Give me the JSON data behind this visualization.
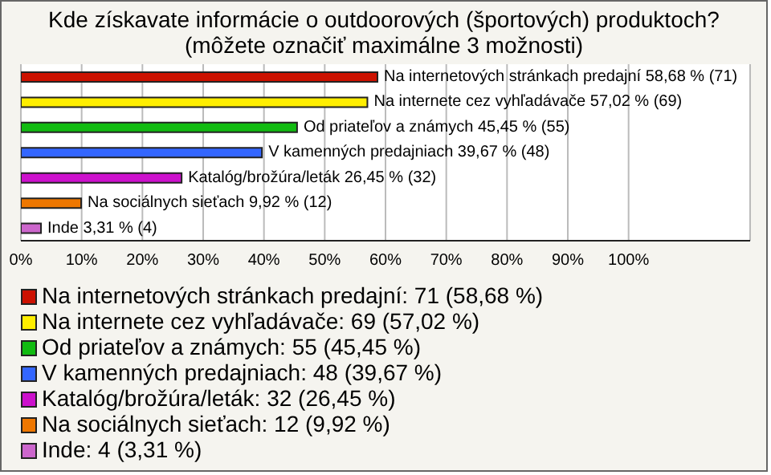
{
  "chart_data": {
    "type": "bar",
    "orientation": "horizontal",
    "stacked": true,
    "title": "Kde získavate informácie o outdoorových (športových) produktoch?",
    "subtitle": "(môžete označiť maximálne 3 možnosti)",
    "categories": [
      null,
      null,
      null,
      null,
      null,
      null,
      null
    ],
    "series": [
      {
        "name": "Na internetových stránkach predajní: 71 (58,68 %)",
        "color": "#cc1100",
        "values": [
          58.68,
          null,
          null,
          null,
          null,
          null,
          null
        ],
        "value_labels": [
          "Na internetových stránkach predajní 58,68 % (71)",
          null,
          null,
          null,
          null,
          null,
          null
        ]
      },
      {
        "name": "Na internete cez vyhľadávače: 69 (57,02 %)",
        "color": "#ffee00",
        "values": [
          null,
          57.02,
          null,
          null,
          null,
          null,
          null
        ],
        "value_labels": [
          null,
          "Na internete cez vyhľadávače 57,02 % (69)",
          null,
          null,
          null,
          null,
          null
        ]
      },
      {
        "name": "Od priateľov a známych: 55 (45,45 %)",
        "color": "#11bb11",
        "values": [
          null,
          null,
          45.45,
          null,
          null,
          null,
          null
        ],
        "value_labels": [
          null,
          null,
          "Od priateľov a známych 45,45 % (55)",
          null,
          null,
          null,
          null
        ]
      },
      {
        "name": "V kamenných predajniach: 48 (39,67 %)",
        "color": "#3366ff",
        "values": [
          null,
          null,
          null,
          39.67,
          null,
          null,
          null
        ],
        "value_labels": [
          null,
          null,
          null,
          "V kamenných predajniach 39,67 % (48)",
          null,
          null,
          null
        ]
      },
      {
        "name": "Katalóg/brožúra/leták: 32 (26,45 %)",
        "color": "#cc11cc",
        "values": [
          null,
          null,
          null,
          null,
          26.45,
          null,
          null
        ],
        "value_labels": [
          null,
          null,
          null,
          null,
          "Katalóg/brožúra/leták 26,45 % (32)",
          null,
          null
        ]
      },
      {
        "name": "Na sociálnych sieťach: 12 (9,92 %)",
        "color": "#ee7700",
        "values": [
          null,
          null,
          null,
          null,
          null,
          9.92,
          null
        ],
        "value_labels": [
          null,
          null,
          null,
          null,
          null,
          "Na sociálnych sieťach 9,92 % (12)",
          null
        ]
      },
      {
        "name": "Inde: 4 (3,31 %)",
        "color": "#cc66cc",
        "values": [
          null,
          null,
          null,
          null,
          null,
          null,
          3.31
        ],
        "value_labels": [
          null,
          null,
          null,
          null,
          null,
          null,
          "Inde 3,31 % (4)"
        ]
      }
    ],
    "xlim": [
      0,
      120
    ],
    "xticks": [
      {
        "value": 0,
        "label": "0%"
      },
      {
        "value": 10,
        "label": "10%"
      },
      {
        "value": 20,
        "label": "20%"
      },
      {
        "value": 30,
        "label": "30%"
      },
      {
        "value": 40,
        "label": "40%"
      },
      {
        "value": 50,
        "label": "50%"
      },
      {
        "value": 60,
        "label": "60%"
      },
      {
        "value": 70,
        "label": "70%"
      },
      {
        "value": 80,
        "label": "80%"
      },
      {
        "value": 90,
        "label": "90%"
      },
      {
        "value": 100,
        "label": "100%"
      }
    ],
    "grid": "x",
    "legend": "bottom left",
    "tick_labels": "x"
  }
}
